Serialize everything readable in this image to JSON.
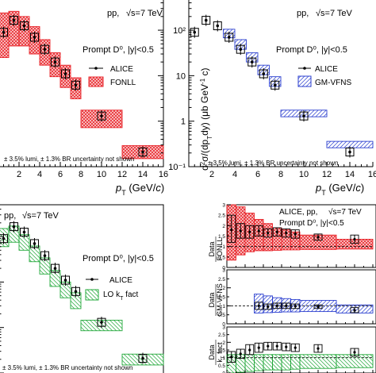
{
  "style": {
    "fonll_color": "#e8242a",
    "gmvfns_color": "#2b3fcf",
    "kt_color": "#22a83a",
    "data_color": "#000000"
  },
  "chart_data": [
    {
      "id": "panel_tl_fonll",
      "type": "scatter",
      "label_pp": "pp,",
      "label_energy": "√s=7 TeV",
      "label_species": "Prompt D⁰, |y|<0.5",
      "legend": [
        "ALICE",
        "FONLL"
      ],
      "note": "± 3.5% lumi, ± 1.3% BR uncertainty not shown",
      "xlabel": "p_T (GeV/c)",
      "xlim": [
        0,
        16
      ],
      "xticks": [
        "2",
        "4",
        "6",
        "8",
        "10",
        "12",
        "14",
        "16"
      ],
      "yscale": "log",
      "ylim": [
        0.1,
        500
      ],
      "data": [
        {
          "x": 0.5,
          "y": 90
        },
        {
          "x": 1.5,
          "y": 165
        },
        {
          "x": 2.5,
          "y": 125
        },
        {
          "x": 3.5,
          "y": 70
        },
        {
          "x": 4.5,
          "y": 38
        },
        {
          "x": 5.5,
          "y": 20
        },
        {
          "x": 6.5,
          "y": 11
        },
        {
          "x": 7.5,
          "y": 6.2
        },
        {
          "x": 10,
          "y": 1.3
        },
        {
          "x": 14,
          "y": 0.21
        }
      ],
      "band": [
        {
          "x0": 0,
          "x1": 1,
          "lo": 25,
          "hi": 240
        },
        {
          "x0": 1,
          "x1": 2,
          "lo": 45,
          "hi": 260
        },
        {
          "x0": 2,
          "x1": 3,
          "lo": 45,
          "hi": 200
        },
        {
          "x0": 3,
          "x1": 4,
          "lo": 30,
          "hi": 120
        },
        {
          "x0": 4,
          "x1": 5,
          "lo": 17,
          "hi": 62
        },
        {
          "x0": 5,
          "x1": 6,
          "lo": 9.5,
          "hi": 32
        },
        {
          "x0": 6,
          "x1": 7,
          "lo": 5.5,
          "hi": 17
        },
        {
          "x0": 7,
          "x1": 8,
          "lo": 3.1,
          "hi": 9
        },
        {
          "x0": 8,
          "x1": 12,
          "lo": 0.72,
          "hi": 1.75
        },
        {
          "x0": 12,
          "x1": 16,
          "lo": 0.15,
          "hi": 0.29
        }
      ]
    },
    {
      "id": "panel_tr_gmvfns",
      "type": "scatter",
      "label_pp": "pp,",
      "label_energy": "√s=7 TeV",
      "label_species": "Prompt D⁰, |y|<0.5",
      "legend": [
        "ALICE",
        "GM-VFNS"
      ],
      "xlabel": "p_T (GeV/c)",
      "ylabel": "d²σ/(dp_T dy) (μb GeV⁻¹ c)",
      "xlim": [
        0,
        16
      ],
      "xticks": [
        "2",
        "4",
        "6",
        "8",
        "10",
        "12",
        "14",
        "16"
      ],
      "yscale": "log",
      "ylim": [
        0.1,
        500
      ],
      "yticks": [
        {
          "value": 0.1,
          "label": "10⁻¹"
        },
        {
          "value": 1,
          "label": "1"
        },
        {
          "value": 10,
          "label": "10"
        },
        {
          "value": 100,
          "label": "10²"
        }
      ],
      "data": [
        {
          "x": 0.5,
          "y": 90
        },
        {
          "x": 1.5,
          "y": 165
        },
        {
          "x": 2.5,
          "y": 125
        },
        {
          "x": 3.5,
          "y": 70
        },
        {
          "x": 4.5,
          "y": 38
        },
        {
          "x": 5.5,
          "y": 20
        },
        {
          "x": 6.5,
          "y": 11
        },
        {
          "x": 7.5,
          "y": 6.2
        },
        {
          "x": 10,
          "y": 1.3
        },
        {
          "x": 14,
          "y": 0.21
        }
      ],
      "band": [
        {
          "x0": 3,
          "x1": 4,
          "lo": 68,
          "hi": 105
        },
        {
          "x0": 4,
          "x1": 5,
          "lo": 38,
          "hi": 62
        },
        {
          "x0": 5,
          "x1": 6,
          "lo": 20,
          "hi": 32
        },
        {
          "x0": 6,
          "x1": 7,
          "lo": 10.5,
          "hi": 17
        },
        {
          "x0": 7,
          "x1": 8,
          "lo": 5.8,
          "hi": 9.5
        },
        {
          "x0": 8,
          "x1": 12,
          "lo": 1.25,
          "hi": 1.75
        },
        {
          "x0": 12,
          "x1": 16,
          "lo": 0.26,
          "hi": 0.36
        }
      ]
    },
    {
      "id": "panel_bl_kt",
      "type": "scatter",
      "label_pp": "pp,",
      "label_energy": "√s=7 TeV",
      "label_species": "Prompt D⁰, |y|<0.5",
      "legend": [
        "ALICE",
        "LO k_T fact"
      ],
      "note": "± 3.5% lumi, ± 1.3% BR uncertainty not shown",
      "xlim": [
        0,
        16
      ],
      "yscale": "log",
      "ylim": [
        0.1,
        500
      ],
      "data": [
        {
          "x": 0.5,
          "y": 90
        },
        {
          "x": 1.5,
          "y": 165
        },
        {
          "x": 2.5,
          "y": 125
        },
        {
          "x": 3.5,
          "y": 70
        },
        {
          "x": 4.5,
          "y": 38
        },
        {
          "x": 5.5,
          "y": 20
        },
        {
          "x": 6.5,
          "y": 11
        },
        {
          "x": 7.5,
          "y": 6.2
        },
        {
          "x": 10,
          "y": 1.3
        },
        {
          "x": 14,
          "y": 0.21
        }
      ],
      "band": [
        {
          "x0": 0,
          "x1": 1,
          "lo": 60,
          "hi": 150
        },
        {
          "x0": 1,
          "x1": 2,
          "lo": 75,
          "hi": 170
        },
        {
          "x0": 2,
          "x1": 3,
          "lo": 50,
          "hi": 110
        },
        {
          "x0": 3,
          "x1": 4,
          "lo": 28,
          "hi": 62
        },
        {
          "x0": 4,
          "x1": 5,
          "lo": 15,
          "hi": 34
        },
        {
          "x0": 5,
          "x1": 6,
          "lo": 8,
          "hi": 18
        },
        {
          "x0": 6,
          "x1": 7,
          "lo": 4.5,
          "hi": 10
        },
        {
          "x0": 7,
          "x1": 8,
          "lo": 2.6,
          "hi": 5.8
        },
        {
          "x0": 8,
          "x1": 12,
          "lo": 0.85,
          "hi": 1.45
        },
        {
          "x0": 12,
          "x1": 16,
          "lo": 0.15,
          "hi": 0.26
        }
      ]
    },
    {
      "id": "panel_br_ratios",
      "type": "scatter",
      "label_collab": "ALICE, pp,",
      "label_energy": "√s=7 TeV",
      "label_species": "Prompt D⁰, |y|<0.5",
      "xlim": [
        0,
        16
      ],
      "subpanels": [
        {
          "ylabel_top": "Data",
          "ylabel_bottom": "FONLL",
          "ylim": [
            0,
            3
          ],
          "yticks": [
            "0",
            "0.5",
            "1",
            "1.5",
            "2",
            "2.5",
            "3"
          ],
          "reference": 1,
          "data": [
            {
              "x": 0.5,
              "y": 1.8
            },
            {
              "x": 1.5,
              "y": 1.75
            },
            {
              "x": 2.5,
              "y": 1.7
            },
            {
              "x": 3.5,
              "y": 1.75
            },
            {
              "x": 4.5,
              "y": 1.65
            },
            {
              "x": 5.5,
              "y": 1.7
            },
            {
              "x": 6.5,
              "y": 1.65
            },
            {
              "x": 7.5,
              "y": 1.6
            },
            {
              "x": 10,
              "y": 1.45
            },
            {
              "x": 14,
              "y": 1.35
            }
          ],
          "errors": [
            {
              "lo": 1.2,
              "hi": 2.5
            },
            {
              "lo": 1.4,
              "hi": 2.1
            },
            {
              "lo": 1.4,
              "hi": 2.0
            },
            {
              "lo": 1.5,
              "hi": 2.0
            },
            {
              "lo": 1.45,
              "hi": 1.85
            },
            {
              "lo": 1.5,
              "hi": 1.9
            },
            {
              "lo": 1.45,
              "hi": 1.85
            },
            {
              "lo": 1.4,
              "hi": 1.8
            },
            {
              "lo": 1.3,
              "hi": 1.6
            },
            {
              "lo": 1.15,
              "hi": 1.55
            }
          ],
          "band": [
            {
              "x0": 0,
              "x1": 1,
              "lo": 0.35,
              "hi": 3.0
            },
            {
              "x0": 1,
              "x1": 2,
              "lo": 0.6,
              "hi": 2.9
            },
            {
              "x0": 2,
              "x1": 3,
              "lo": 0.75,
              "hi": 2.6
            },
            {
              "x0": 3,
              "x1": 4,
              "lo": 0.8,
              "hi": 2.3
            },
            {
              "x0": 4,
              "x1": 5,
              "lo": 0.8,
              "hi": 2.1
            },
            {
              "x0": 5,
              "x1": 6,
              "lo": 0.82,
              "hi": 1.9
            },
            {
              "x0": 6,
              "x1": 7,
              "lo": 0.84,
              "hi": 1.8
            },
            {
              "x0": 7,
              "x1": 8,
              "lo": 0.84,
              "hi": 1.7
            },
            {
              "x0": 8,
              "x1": 12,
              "lo": 0.86,
              "hi": 1.55
            },
            {
              "x0": 12,
              "x1": 16,
              "lo": 0.88,
              "hi": 1.35
            }
          ]
        },
        {
          "ylabel_top": "Data",
          "ylabel_bottom": "GM-VFNS",
          "ylim": [
            0,
            3
          ],
          "yticks": [
            "0",
            "0.5",
            "1",
            "1.5",
            "2",
            "2.5",
            "3"
          ],
          "reference": 1,
          "data": [
            {
              "x": 3.5,
              "y": 1.0
            },
            {
              "x": 4.5,
              "y": 0.95
            },
            {
              "x": 5.5,
              "y": 1.0
            },
            {
              "x": 6.5,
              "y": 1.0
            },
            {
              "x": 7.5,
              "y": 0.98
            },
            {
              "x": 10,
              "y": 0.95
            },
            {
              "x": 14,
              "y": 0.75
            }
          ],
          "errors": [
            {
              "lo": 0.8,
              "hi": 1.2
            },
            {
              "lo": 0.8,
              "hi": 1.1
            },
            {
              "lo": 0.85,
              "hi": 1.15
            },
            {
              "lo": 0.85,
              "hi": 1.15
            },
            {
              "lo": 0.85,
              "hi": 1.1
            },
            {
              "lo": 0.85,
              "hi": 1.05
            },
            {
              "lo": 0.62,
              "hi": 0.9
            }
          ],
          "band": [
            {
              "x0": 3,
              "x1": 4,
              "lo": 0.6,
              "hi": 1.65
            },
            {
              "x0": 4,
              "x1": 5,
              "lo": 0.62,
              "hi": 1.55
            },
            {
              "x0": 5,
              "x1": 6,
              "lo": 0.64,
              "hi": 1.45
            },
            {
              "x0": 6,
              "x1": 7,
              "lo": 0.66,
              "hi": 1.4
            },
            {
              "x0": 7,
              "x1": 8,
              "lo": 0.66,
              "hi": 1.35
            },
            {
              "x0": 8,
              "x1": 12,
              "lo": 0.68,
              "hi": 1.3
            },
            {
              "x0": 12,
              "x1": 16,
              "lo": 0.6,
              "hi": 1.05
            }
          ]
        },
        {
          "ylabel_top": "Data",
          "ylabel_bottom": "k_T fact",
          "ylim": [
            0,
            3
          ],
          "yticks": [
            "0",
            "0.5",
            "1",
            "1.5",
            "2",
            "2.5",
            "3"
          ],
          "reference": 1,
          "data": [
            {
              "x": 0.5,
              "y": 1.05
            },
            {
              "x": 1.5,
              "y": 1.25
            },
            {
              "x": 2.5,
              "y": 1.5
            },
            {
              "x": 3.5,
              "y": 1.65
            },
            {
              "x": 4.5,
              "y": 1.75
            },
            {
              "x": 5.5,
              "y": 1.75
            },
            {
              "x": 6.5,
              "y": 1.7
            },
            {
              "x": 7.5,
              "y": 1.65
            },
            {
              "x": 10,
              "y": 1.6
            },
            {
              "x": 14,
              "y": 1.35
            }
          ],
          "errors": [
            {
              "lo": 0.7,
              "hi": 1.4
            },
            {
              "lo": 0.95,
              "hi": 1.55
            },
            {
              "lo": 1.2,
              "hi": 1.85
            },
            {
              "lo": 1.35,
              "hi": 1.95
            },
            {
              "lo": 1.5,
              "hi": 2.0
            },
            {
              "lo": 1.5,
              "hi": 2.0
            },
            {
              "lo": 1.45,
              "hi": 1.95
            },
            {
              "lo": 1.4,
              "hi": 1.9
            },
            {
              "lo": 1.35,
              "hi": 1.85
            },
            {
              "lo": 1.1,
              "hi": 1.6
            }
          ],
          "band": [
            {
              "x0": 0,
              "x1": 1,
              "lo": 0.0,
              "hi": 1.2
            },
            {
              "x0": 1,
              "x1": 2,
              "lo": 0.05,
              "hi": 1.2
            },
            {
              "x0": 2,
              "x1": 3,
              "lo": 0.1,
              "hi": 1.2
            },
            {
              "x0": 3,
              "x1": 4,
              "lo": 0.15,
              "hi": 1.2
            },
            {
              "x0": 4,
              "x1": 5,
              "lo": 0.2,
              "hi": 1.2
            },
            {
              "x0": 5,
              "x1": 6,
              "lo": 0.2,
              "hi": 1.2
            },
            {
              "x0": 6,
              "x1": 7,
              "lo": 0.2,
              "hi": 1.2
            },
            {
              "x0": 7,
              "x1": 8,
              "lo": 0.25,
              "hi": 1.2
            },
            {
              "x0": 8,
              "x1": 12,
              "lo": 0.3,
              "hi": 1.2
            },
            {
              "x0": 12,
              "x1": 16,
              "lo": 0.35,
              "hi": 1.2
            }
          ]
        }
      ]
    }
  ]
}
